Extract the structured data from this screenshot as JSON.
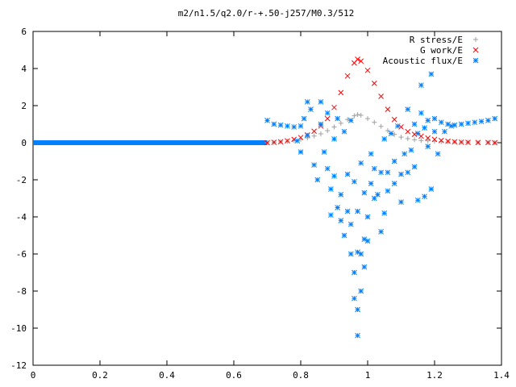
{
  "chart_data": {
    "type": "scatter",
    "title": "m2/n1.5/q2.0/r-+.50-j257/M0.3/512",
    "xlabel": "",
    "ylabel": "",
    "xlim": [
      0,
      1.4
    ],
    "ylim": [
      -12,
      6
    ],
    "x_ticks": [
      0,
      0.2,
      0.4,
      0.6,
      0.8,
      1,
      1.2,
      1.4
    ],
    "y_ticks": [
      -12,
      -10,
      -8,
      -6,
      -4,
      -2,
      0,
      2,
      4,
      6
    ],
    "x_tick_labels": [
      "0",
      "0.2",
      "0.4",
      "0.6",
      "0.8",
      "1",
      "1.2",
      "1.4"
    ],
    "y_tick_labels": [
      "-12",
      "-10",
      "-8",
      "-6",
      "-4",
      "-2",
      "0",
      "2",
      "4",
      "6"
    ],
    "grid": false,
    "legend_position": "top-right",
    "series": [
      {
        "name": "R stress/E",
        "marker": "plus",
        "color": "#a0a0a0",
        "points": [
          [
            0.7,
            0.0
          ],
          [
            0.72,
            0.02
          ],
          [
            0.74,
            0.05
          ],
          [
            0.76,
            0.08
          ],
          [
            0.78,
            0.12
          ],
          [
            0.8,
            0.18
          ],
          [
            0.82,
            0.26
          ],
          [
            0.84,
            0.36
          ],
          [
            0.86,
            0.48
          ],
          [
            0.88,
            0.65
          ],
          [
            0.9,
            0.85
          ],
          [
            0.92,
            1.05
          ],
          [
            0.94,
            1.25
          ],
          [
            0.96,
            1.45
          ],
          [
            0.97,
            1.52
          ],
          [
            0.98,
            1.48
          ],
          [
            1.0,
            1.3
          ],
          [
            1.02,
            1.1
          ],
          [
            1.04,
            0.88
          ],
          [
            1.06,
            0.65
          ],
          [
            1.08,
            0.45
          ],
          [
            1.1,
            0.3
          ],
          [
            1.12,
            0.22
          ],
          [
            1.14,
            0.16
          ],
          [
            1.16,
            0.12
          ],
          [
            1.18,
            0.1
          ],
          [
            1.2,
            0.08
          ],
          [
            1.22,
            0.06
          ],
          [
            1.24,
            0.05
          ],
          [
            1.26,
            0.04
          ],
          [
            1.28,
            0.03
          ],
          [
            1.3,
            0.02
          ],
          [
            1.33,
            0.01
          ],
          [
            1.36,
            0.01
          ],
          [
            1.38,
            0.0
          ]
        ]
      },
      {
        "name": "G work/E",
        "marker": "cross",
        "color": "#ff0000",
        "points": [
          [
            0.7,
            0.0
          ],
          [
            0.72,
            0.02
          ],
          [
            0.74,
            0.05
          ],
          [
            0.76,
            0.1
          ],
          [
            0.78,
            0.18
          ],
          [
            0.8,
            0.28
          ],
          [
            0.82,
            0.42
          ],
          [
            0.84,
            0.62
          ],
          [
            0.86,
            0.9
          ],
          [
            0.88,
            1.3
          ],
          [
            0.9,
            1.9
          ],
          [
            0.92,
            2.7
          ],
          [
            0.94,
            3.6
          ],
          [
            0.96,
            4.3
          ],
          [
            0.97,
            4.5
          ],
          [
            0.98,
            4.4
          ],
          [
            1.0,
            3.9
          ],
          [
            1.02,
            3.2
          ],
          [
            1.04,
            2.5
          ],
          [
            1.06,
            1.8
          ],
          [
            1.08,
            1.25
          ],
          [
            1.1,
            0.85
          ],
          [
            1.12,
            0.6
          ],
          [
            1.14,
            0.45
          ],
          [
            1.16,
            0.35
          ],
          [
            1.18,
            0.25
          ],
          [
            1.2,
            0.18
          ],
          [
            1.22,
            0.12
          ],
          [
            1.24,
            0.08
          ],
          [
            1.26,
            0.05
          ],
          [
            1.28,
            0.03
          ],
          [
            1.3,
            0.02
          ],
          [
            1.33,
            0.01
          ],
          [
            1.36,
            0.01
          ],
          [
            1.38,
            0.0
          ]
        ]
      },
      {
        "name": "Acoustic flux/E",
        "marker": "asterisk",
        "color": "#0080ff",
        "points": [
          [
            0.7,
            1.2
          ],
          [
            0.72,
            1.0
          ],
          [
            0.74,
            0.95
          ],
          [
            0.76,
            0.9
          ],
          [
            0.78,
            0.85
          ],
          [
            0.8,
            0.9
          ],
          [
            0.79,
            0.1
          ],
          [
            0.8,
            -0.5
          ],
          [
            0.81,
            1.3
          ],
          [
            0.82,
            0.4
          ],
          [
            0.83,
            1.8
          ],
          [
            0.82,
            2.2
          ],
          [
            0.84,
            -1.2
          ],
          [
            0.85,
            -2.0
          ],
          [
            0.86,
            1.0
          ],
          [
            0.86,
            2.2
          ],
          [
            0.87,
            -0.5
          ],
          [
            0.88,
            -1.4
          ],
          [
            0.88,
            1.6
          ],
          [
            0.89,
            -2.5
          ],
          [
            0.89,
            -3.9
          ],
          [
            0.9,
            0.2
          ],
          [
            0.9,
            -1.8
          ],
          [
            0.91,
            -3.5
          ],
          [
            0.91,
            1.3
          ],
          [
            0.92,
            -4.2
          ],
          [
            0.92,
            -2.8
          ],
          [
            0.93,
            0.6
          ],
          [
            0.93,
            -5.0
          ],
          [
            0.94,
            -1.7
          ],
          [
            0.94,
            -3.7
          ],
          [
            0.95,
            -6.0
          ],
          [
            0.95,
            -4.4
          ],
          [
            0.95,
            1.2
          ],
          [
            0.96,
            -7.0
          ],
          [
            0.96,
            -8.4
          ],
          [
            0.96,
            -2.1
          ],
          [
            0.97,
            -9.0
          ],
          [
            0.97,
            -5.9
          ],
          [
            0.97,
            -3.7
          ],
          [
            0.97,
            -10.4
          ],
          [
            0.98,
            -8.0
          ],
          [
            0.98,
            -6.0
          ],
          [
            0.98,
            -1.1
          ],
          [
            0.99,
            -5.2
          ],
          [
            0.99,
            -6.7
          ],
          [
            0.99,
            -2.7
          ],
          [
            1.0,
            -5.3
          ],
          [
            1.0,
            -4.0
          ],
          [
            1.01,
            -2.2
          ],
          [
            1.01,
            -0.6
          ],
          [
            1.02,
            -1.4
          ],
          [
            1.02,
            -3.0
          ],
          [
            1.03,
            -2.8
          ],
          [
            1.04,
            -4.8
          ],
          [
            1.04,
            -1.6
          ],
          [
            1.05,
            -3.8
          ],
          [
            1.05,
            0.2
          ],
          [
            1.06,
            -1.6
          ],
          [
            1.06,
            -2.6
          ],
          [
            1.07,
            0.5
          ],
          [
            1.08,
            -2.2
          ],
          [
            1.08,
            -1.0
          ],
          [
            1.09,
            0.9
          ],
          [
            1.1,
            -1.7
          ],
          [
            1.1,
            -3.2
          ],
          [
            1.11,
            -0.6
          ],
          [
            1.12,
            -1.6
          ],
          [
            1.12,
            1.8
          ],
          [
            1.13,
            -0.4
          ],
          [
            1.14,
            -1.3
          ],
          [
            1.14,
            1.0
          ],
          [
            1.15,
            0.5
          ],
          [
            1.15,
            -3.1
          ],
          [
            1.16,
            1.6
          ],
          [
            1.16,
            3.1
          ],
          [
            1.17,
            0.8
          ],
          [
            1.17,
            -2.9
          ],
          [
            1.18,
            -0.2
          ],
          [
            1.18,
            1.2
          ],
          [
            1.19,
            3.7
          ],
          [
            1.19,
            -2.5
          ],
          [
            1.2,
            0.6
          ],
          [
            1.2,
            1.3
          ],
          [
            1.21,
            -0.6
          ],
          [
            1.22,
            1.1
          ],
          [
            1.23,
            0.6
          ],
          [
            1.24,
            1.0
          ],
          [
            1.25,
            0.9
          ],
          [
            1.26,
            0.95
          ],
          [
            1.28,
            1.0
          ],
          [
            1.3,
            1.05
          ],
          [
            1.32,
            1.1
          ],
          [
            1.34,
            1.15
          ],
          [
            1.36,
            1.2
          ],
          [
            1.38,
            1.3
          ]
        ]
      }
    ]
  },
  "baseline_series": {
    "name": "Acoustic flux/E",
    "color": "#0080ff",
    "x_range": [
      0.0,
      0.7
    ],
    "y": 0
  }
}
